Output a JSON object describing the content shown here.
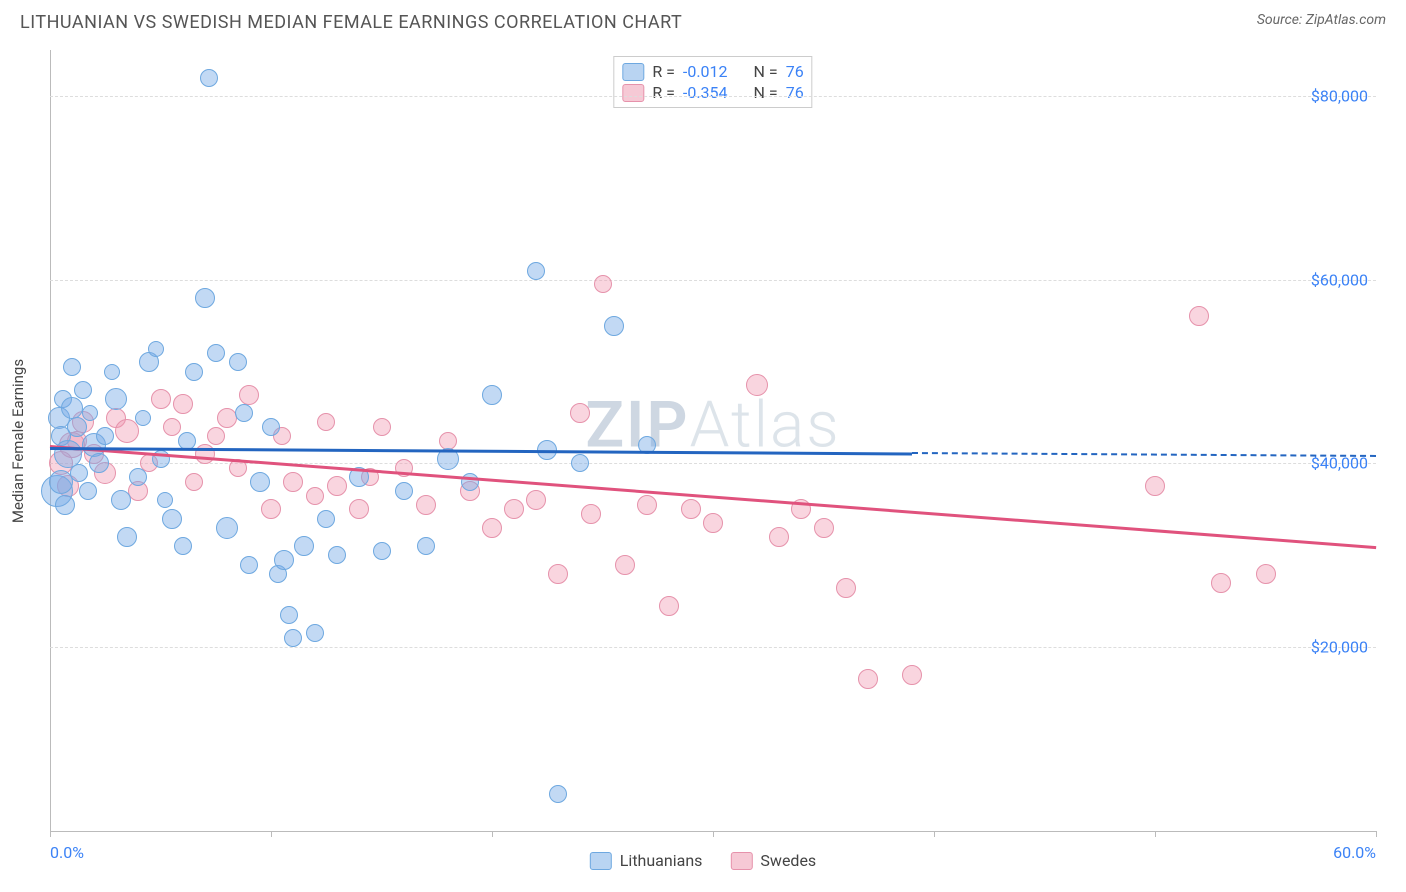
{
  "title": "LITHUANIAN VS SWEDISH MEDIAN FEMALE EARNINGS CORRELATION CHART",
  "source_label": "Source: ZipAtlas.com",
  "watermark": {
    "prefix": "ZIP",
    "suffix": "Atlas"
  },
  "y_axis_title": "Median Female Earnings",
  "series_a": {
    "name": "Lithuanians",
    "color_fill": "rgba(120,170,230,0.45)",
    "color_stroke": "#6ea8e0",
    "swatch_fill": "#b9d4f2",
    "swatch_border": "#6ea8e0",
    "r_value": "-0.012",
    "n_value": "76",
    "trend_color": "#2365c0",
    "trend_y_start": 41800,
    "trend_y_end": 41200,
    "trend_x_end": 39,
    "trend_dash_to": 60,
    "points": [
      {
        "x": 0.4,
        "y": 45000,
        "r": 11
      },
      {
        "x": 0.5,
        "y": 43000,
        "r": 10
      },
      {
        "x": 0.6,
        "y": 47000,
        "r": 9
      },
      {
        "x": 0.8,
        "y": 41000,
        "r": 14
      },
      {
        "x": 1.0,
        "y": 46000,
        "r": 11
      },
      {
        "x": 1.2,
        "y": 44000,
        "r": 10
      },
      {
        "x": 0.3,
        "y": 37000,
        "r": 16
      },
      {
        "x": 0.5,
        "y": 38000,
        "r": 12
      },
      {
        "x": 1.5,
        "y": 48000,
        "r": 9
      },
      {
        "x": 1.8,
        "y": 45500,
        "r": 8
      },
      {
        "x": 2.0,
        "y": 42000,
        "r": 12
      },
      {
        "x": 2.2,
        "y": 40000,
        "r": 10
      },
      {
        "x": 2.5,
        "y": 43000,
        "r": 9
      },
      {
        "x": 3.0,
        "y": 47000,
        "r": 11
      },
      {
        "x": 3.2,
        "y": 36000,
        "r": 10
      },
      {
        "x": 3.5,
        "y": 32000,
        "r": 10
      },
      {
        "x": 4.0,
        "y": 38500,
        "r": 9
      },
      {
        "x": 4.2,
        "y": 45000,
        "r": 8
      },
      {
        "x": 4.5,
        "y": 51000,
        "r": 10
      },
      {
        "x": 5.0,
        "y": 40500,
        "r": 9
      },
      {
        "x": 5.5,
        "y": 34000,
        "r": 10
      },
      {
        "x": 6.0,
        "y": 31000,
        "r": 9
      },
      {
        "x": 6.5,
        "y": 50000,
        "r": 9
      },
      {
        "x": 7.0,
        "y": 58000,
        "r": 10
      },
      {
        "x": 7.2,
        "y": 82000,
        "r": 9
      },
      {
        "x": 7.5,
        "y": 52000,
        "r": 9
      },
      {
        "x": 8.0,
        "y": 33000,
        "r": 11
      },
      {
        "x": 8.5,
        "y": 51000,
        "r": 9
      },
      {
        "x": 9.0,
        "y": 29000,
        "r": 9
      },
      {
        "x": 9.5,
        "y": 38000,
        "r": 10
      },
      {
        "x": 10.0,
        "y": 44000,
        "r": 9
      },
      {
        "x": 10.3,
        "y": 28000,
        "r": 9
      },
      {
        "x": 10.6,
        "y": 29500,
        "r": 10
      },
      {
        "x": 11.0,
        "y": 21000,
        "r": 9
      },
      {
        "x": 11.5,
        "y": 31000,
        "r": 10
      },
      {
        "x": 12.0,
        "y": 21500,
        "r": 9
      },
      {
        "x": 12.5,
        "y": 34000,
        "r": 9
      },
      {
        "x": 13.0,
        "y": 30000,
        "r": 9
      },
      {
        "x": 14.0,
        "y": 38500,
        "r": 10
      },
      {
        "x": 15.0,
        "y": 30500,
        "r": 9
      },
      {
        "x": 16.0,
        "y": 37000,
        "r": 9
      },
      {
        "x": 17.0,
        "y": 31000,
        "r": 9
      },
      {
        "x": 18.0,
        "y": 40500,
        "r": 11
      },
      {
        "x": 19.0,
        "y": 38000,
        "r": 9
      },
      {
        "x": 20.0,
        "y": 47500,
        "r": 10
      },
      {
        "x": 22.0,
        "y": 61000,
        "r": 9
      },
      {
        "x": 22.5,
        "y": 41500,
        "r": 10
      },
      {
        "x": 23.0,
        "y": 4000,
        "r": 9
      },
      {
        "x": 24.0,
        "y": 40000,
        "r": 9
      },
      {
        "x": 25.5,
        "y": 55000,
        "r": 10
      },
      {
        "x": 27.0,
        "y": 42000,
        "r": 9
      },
      {
        "x": 4.8,
        "y": 52500,
        "r": 8
      },
      {
        "x": 5.2,
        "y": 36000,
        "r": 8
      },
      {
        "x": 6.2,
        "y": 42500,
        "r": 9
      },
      {
        "x": 2.8,
        "y": 50000,
        "r": 8
      },
      {
        "x": 1.0,
        "y": 50500,
        "r": 9
      },
      {
        "x": 0.7,
        "y": 35500,
        "r": 10
      },
      {
        "x": 1.3,
        "y": 39000,
        "r": 9
      },
      {
        "x": 1.7,
        "y": 37000,
        "r": 9
      },
      {
        "x": 8.8,
        "y": 45500,
        "r": 9
      },
      {
        "x": 10.8,
        "y": 23500,
        "r": 9
      }
    ]
  },
  "series_b": {
    "name": "Swedes",
    "color_fill": "rgba(240,150,175,0.40)",
    "color_stroke": "#e692ab",
    "swatch_fill": "#f6c9d5",
    "swatch_border": "#e692ab",
    "r_value": "-0.354",
    "n_value": "76",
    "trend_color": "#e0527d",
    "trend_y_start": 42000,
    "trend_y_end": 31000,
    "trend_x_end": 60,
    "points": [
      {
        "x": 1.0,
        "y": 42000,
        "r": 13
      },
      {
        "x": 1.5,
        "y": 44500,
        "r": 11
      },
      {
        "x": 2.0,
        "y": 41000,
        "r": 10
      },
      {
        "x": 2.5,
        "y": 39000,
        "r": 11
      },
      {
        "x": 3.0,
        "y": 45000,
        "r": 10
      },
      {
        "x": 3.5,
        "y": 43500,
        "r": 12
      },
      {
        "x": 4.0,
        "y": 37000,
        "r": 10
      },
      {
        "x": 4.5,
        "y": 40000,
        "r": 9
      },
      {
        "x": 5.0,
        "y": 47000,
        "r": 10
      },
      {
        "x": 5.5,
        "y": 44000,
        "r": 9
      },
      {
        "x": 6.0,
        "y": 46500,
        "r": 10
      },
      {
        "x": 6.5,
        "y": 38000,
        "r": 9
      },
      {
        "x": 7.0,
        "y": 41000,
        "r": 10
      },
      {
        "x": 7.5,
        "y": 43000,
        "r": 9
      },
      {
        "x": 8.0,
        "y": 45000,
        "r": 10
      },
      {
        "x": 8.5,
        "y": 39500,
        "r": 9
      },
      {
        "x": 9.0,
        "y": 47500,
        "r": 10
      },
      {
        "x": 10.0,
        "y": 35000,
        "r": 10
      },
      {
        "x": 10.5,
        "y": 43000,
        "r": 9
      },
      {
        "x": 11.0,
        "y": 38000,
        "r": 10
      },
      {
        "x": 12.0,
        "y": 36500,
        "r": 9
      },
      {
        "x": 13.0,
        "y": 37500,
        "r": 10
      },
      {
        "x": 14.0,
        "y": 35000,
        "r": 10
      },
      {
        "x": 14.5,
        "y": 38500,
        "r": 9
      },
      {
        "x": 15.0,
        "y": 44000,
        "r": 9
      },
      {
        "x": 17.0,
        "y": 35500,
        "r": 10
      },
      {
        "x": 18.0,
        "y": 42500,
        "r": 9
      },
      {
        "x": 19.0,
        "y": 37000,
        "r": 10
      },
      {
        "x": 20.0,
        "y": 33000,
        "r": 10
      },
      {
        "x": 21.0,
        "y": 35000,
        "r": 10
      },
      {
        "x": 22.0,
        "y": 36000,
        "r": 10
      },
      {
        "x": 23.0,
        "y": 28000,
        "r": 10
      },
      {
        "x": 24.0,
        "y": 45500,
        "r": 10
      },
      {
        "x": 25.0,
        "y": 59500,
        "r": 9
      },
      {
        "x": 26.0,
        "y": 29000,
        "r": 10
      },
      {
        "x": 27.0,
        "y": 35500,
        "r": 10
      },
      {
        "x": 28.0,
        "y": 24500,
        "r": 10
      },
      {
        "x": 29.0,
        "y": 35000,
        "r": 10
      },
      {
        "x": 30.0,
        "y": 33500,
        "r": 10
      },
      {
        "x": 32.0,
        "y": 48500,
        "r": 11
      },
      {
        "x": 33.0,
        "y": 32000,
        "r": 10
      },
      {
        "x": 34.0,
        "y": 35000,
        "r": 10
      },
      {
        "x": 35.0,
        "y": 33000,
        "r": 10
      },
      {
        "x": 36.0,
        "y": 26500,
        "r": 10
      },
      {
        "x": 37.0,
        "y": 16500,
        "r": 10
      },
      {
        "x": 39.0,
        "y": 17000,
        "r": 10
      },
      {
        "x": 50.0,
        "y": 37500,
        "r": 10
      },
      {
        "x": 53.0,
        "y": 27000,
        "r": 10
      },
      {
        "x": 55.0,
        "y": 28000,
        "r": 10
      },
      {
        "x": 52.0,
        "y": 56000,
        "r": 10
      },
      {
        "x": 24.5,
        "y": 34500,
        "r": 10
      },
      {
        "x": 0.5,
        "y": 40000,
        "r": 12
      },
      {
        "x": 0.8,
        "y": 37500,
        "r": 11
      },
      {
        "x": 1.2,
        "y": 42500,
        "r": 10
      },
      {
        "x": 12.5,
        "y": 44500,
        "r": 9
      },
      {
        "x": 16.0,
        "y": 39500,
        "r": 9
      }
    ]
  },
  "axes": {
    "xlim": [
      0,
      60
    ],
    "ylim": [
      0,
      85000
    ],
    "x_ticks": [
      0,
      10,
      20,
      30,
      40,
      50,
      60
    ],
    "x_tick_labels_start": "0.0%",
    "x_tick_labels_end": "60.0%",
    "y_gridlines": [
      20000,
      40000,
      60000,
      80000
    ],
    "y_tick_labels": [
      "$20,000",
      "$40,000",
      "$60,000",
      "$80,000"
    ]
  },
  "legend_labels": {
    "r": "R =",
    "n": "N ="
  },
  "colors": {
    "title": "#555555",
    "tick_label": "#3b82f6",
    "grid": "#dddddd",
    "axis": "#bbbbbb"
  }
}
